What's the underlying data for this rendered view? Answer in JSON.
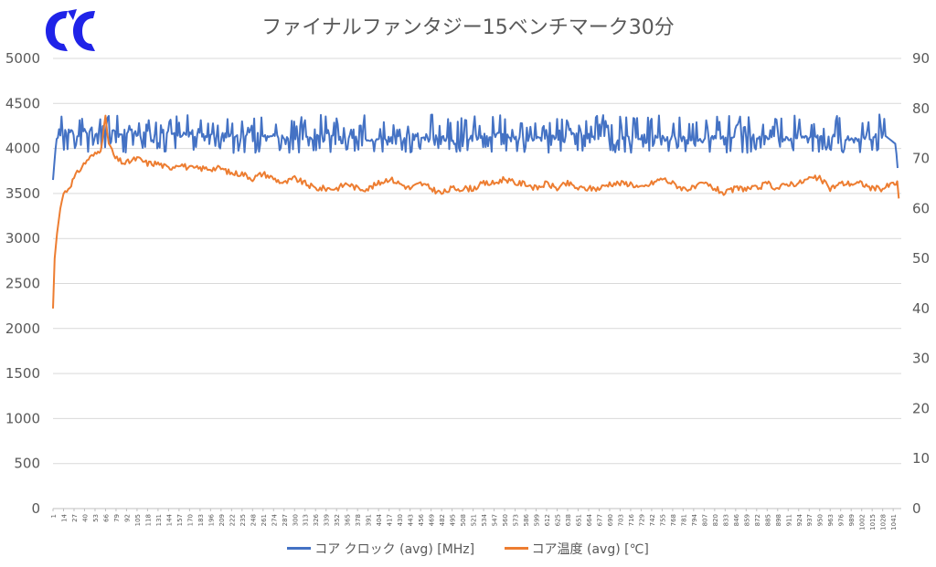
{
  "logo": {
    "name": "brand-logo",
    "color": "#1f23e8"
  },
  "chart_data": {
    "type": "line",
    "title": "ファイナルファンタジー15ベンチマーク30分",
    "x_range": [
      1,
      1051
    ],
    "x_tick_step": 13,
    "x_tick_labels": [
      "1",
      "14",
      "27",
      "40",
      "53",
      "66",
      "79",
      "92",
      "105",
      "118",
      "131",
      "144",
      "157",
      "170",
      "183",
      "196",
      "209",
      "222",
      "235",
      "248",
      "261",
      "274",
      "287",
      "300",
      "313",
      "326",
      "339",
      "352",
      "365",
      "378",
      "391",
      "404",
      "417",
      "430",
      "443",
      "456",
      "469",
      "482",
      "495",
      "508",
      "521",
      "534",
      "547",
      "560",
      "573",
      "586",
      "599",
      "612",
      "625",
      "638",
      "651",
      "664",
      "677",
      "690",
      "703",
      "716",
      "729",
      "742",
      "755",
      "768",
      "781",
      "794",
      "807",
      "820",
      "833",
      "846",
      "859",
      "872",
      "885",
      "898",
      "911",
      "924",
      "937",
      "950",
      "963",
      "976",
      "989",
      "1002",
      "1015",
      "1028",
      "1041"
    ],
    "y_left": {
      "min": 0,
      "max": 5000,
      "step": 500,
      "tick_labels": [
        "0",
        "500",
        "1000",
        "1500",
        "2000",
        "2500",
        "3000",
        "3500",
        "4000",
        "4500",
        "5000"
      ]
    },
    "y_right": {
      "min": 0,
      "max": 90,
      "step": 10,
      "tick_labels": [
        "0",
        "10",
        "20",
        "30",
        "40",
        "50",
        "60",
        "70",
        "80",
        "90"
      ]
    },
    "grid": true,
    "legend_position": "bottom",
    "series": [
      {
        "name": "コア クロック (avg) [MHz]",
        "axis": "left",
        "color": "#4472c4",
        "x": [
          1,
          5,
          10,
          20,
          30,
          40,
          50,
          60,
          66,
          72,
          80,
          95,
          110,
          130,
          150,
          170,
          190,
          210,
          230,
          250,
          270,
          300,
          350,
          400,
          450,
          500,
          550,
          600,
          650,
          700,
          750,
          800,
          850,
          900,
          950,
          1000,
          1030,
          1044,
          1047
        ],
        "values": [
          3650,
          4100,
          4150,
          4200,
          4150,
          4200,
          4150,
          4200,
          4250,
          4200,
          4150,
          4200,
          4150,
          4200,
          4150,
          4150,
          4150,
          4150,
          4150,
          4150,
          4150,
          4100,
          4150,
          4100,
          4150,
          4100,
          4150,
          4100,
          4150,
          4100,
          4150,
          4100,
          4150,
          4100,
          4150,
          4100,
          4150,
          4050,
          3730
        ],
        "fluct_low": 3950,
        "fluct_high": 4380
      },
      {
        "name": "コア温度 (avg) [℃]",
        "axis": "right",
        "color": "#ed7d31",
        "x": [
          1,
          3,
          6,
          10,
          14,
          20,
          27,
          35,
          45,
          55,
          60,
          66,
          70,
          78,
          90,
          105,
          118,
          131,
          144,
          157,
          170,
          183,
          196,
          209,
          222,
          235,
          248,
          261,
          274,
          287,
          300,
          313,
          326,
          339,
          352,
          365,
          378,
          391,
          404,
          417,
          430,
          443,
          456,
          469,
          482,
          495,
          508,
          521,
          534,
          547,
          560,
          573,
          586,
          599,
          612,
          625,
          638,
          651,
          664,
          677,
          690,
          703,
          716,
          729,
          742,
          755,
          768,
          781,
          794,
          807,
          820,
          833,
          846,
          859,
          872,
          885,
          898,
          911,
          924,
          937,
          950,
          963,
          976,
          989,
          1002,
          1015,
          1028,
          1041,
          1046,
          1048
        ],
        "values": [
          40,
          50,
          55,
          60,
          63,
          64,
          66,
          68,
          70,
          71,
          72,
          78,
          73,
          70,
          69,
          70,
          69,
          69,
          68,
          69,
          68,
          68,
          68,
          68,
          67,
          67,
          66,
          67,
          66,
          65,
          66,
          65,
          64,
          64,
          64,
          65,
          64,
          64,
          65,
          66,
          65,
          64,
          65,
          64,
          63,
          64,
          64,
          64,
          65,
          65,
          66,
          65,
          65,
          64,
          65,
          64,
          65,
          64,
          64,
          64,
          65,
          65,
          65,
          64,
          65,
          66,
          65,
          64,
          64,
          65,
          64,
          63,
          64,
          64,
          64,
          65,
          64,
          65,
          65,
          66,
          66,
          64,
          65,
          65,
          65,
          64,
          64,
          65,
          65,
          62
        ]
      }
    ]
  }
}
